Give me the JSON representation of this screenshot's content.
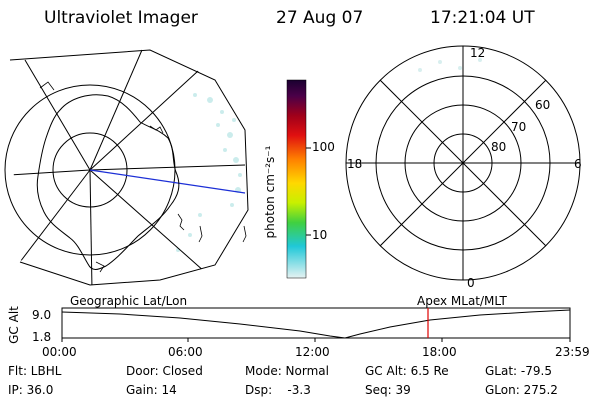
{
  "header": {
    "instrument": "Ultraviolet Imager",
    "date": "27 Aug 07",
    "time": "17:21:04 UT"
  },
  "colorbar": {
    "unit_label": "photon cm⁻²s⁻¹",
    "ticks": [
      "100",
      "10"
    ]
  },
  "polar_plot": {
    "hour_labels": {
      "top": "12",
      "left": "18",
      "right": "6",
      "bottom": "0"
    },
    "lat_labels": [
      "60",
      "70",
      "80"
    ]
  },
  "timeline": {
    "left_label": "Geographic Lat/Lon",
    "right_label": "Apex MLat/MLT",
    "y_axis_label": "GC Alt",
    "y_ticks": [
      "9.0",
      "1.8"
    ],
    "x_ticks": [
      "00:00",
      "06:00",
      "12:00",
      "18:00",
      "23:59"
    ],
    "marker_color": "#e00000"
  },
  "status": {
    "flt": "Flt: LBHL",
    "door": "Door: Closed",
    "mode": "Mode: Normal",
    "gc_alt": "GC Alt: 6.5 Re",
    "glat": "GLat: -79.5",
    "ip": "IP: 36.0",
    "gain": "Gain: 14",
    "dsp": "Dsp:    -3.3",
    "seq": "Seq: 39",
    "glon": "GLon: 275.2"
  }
}
